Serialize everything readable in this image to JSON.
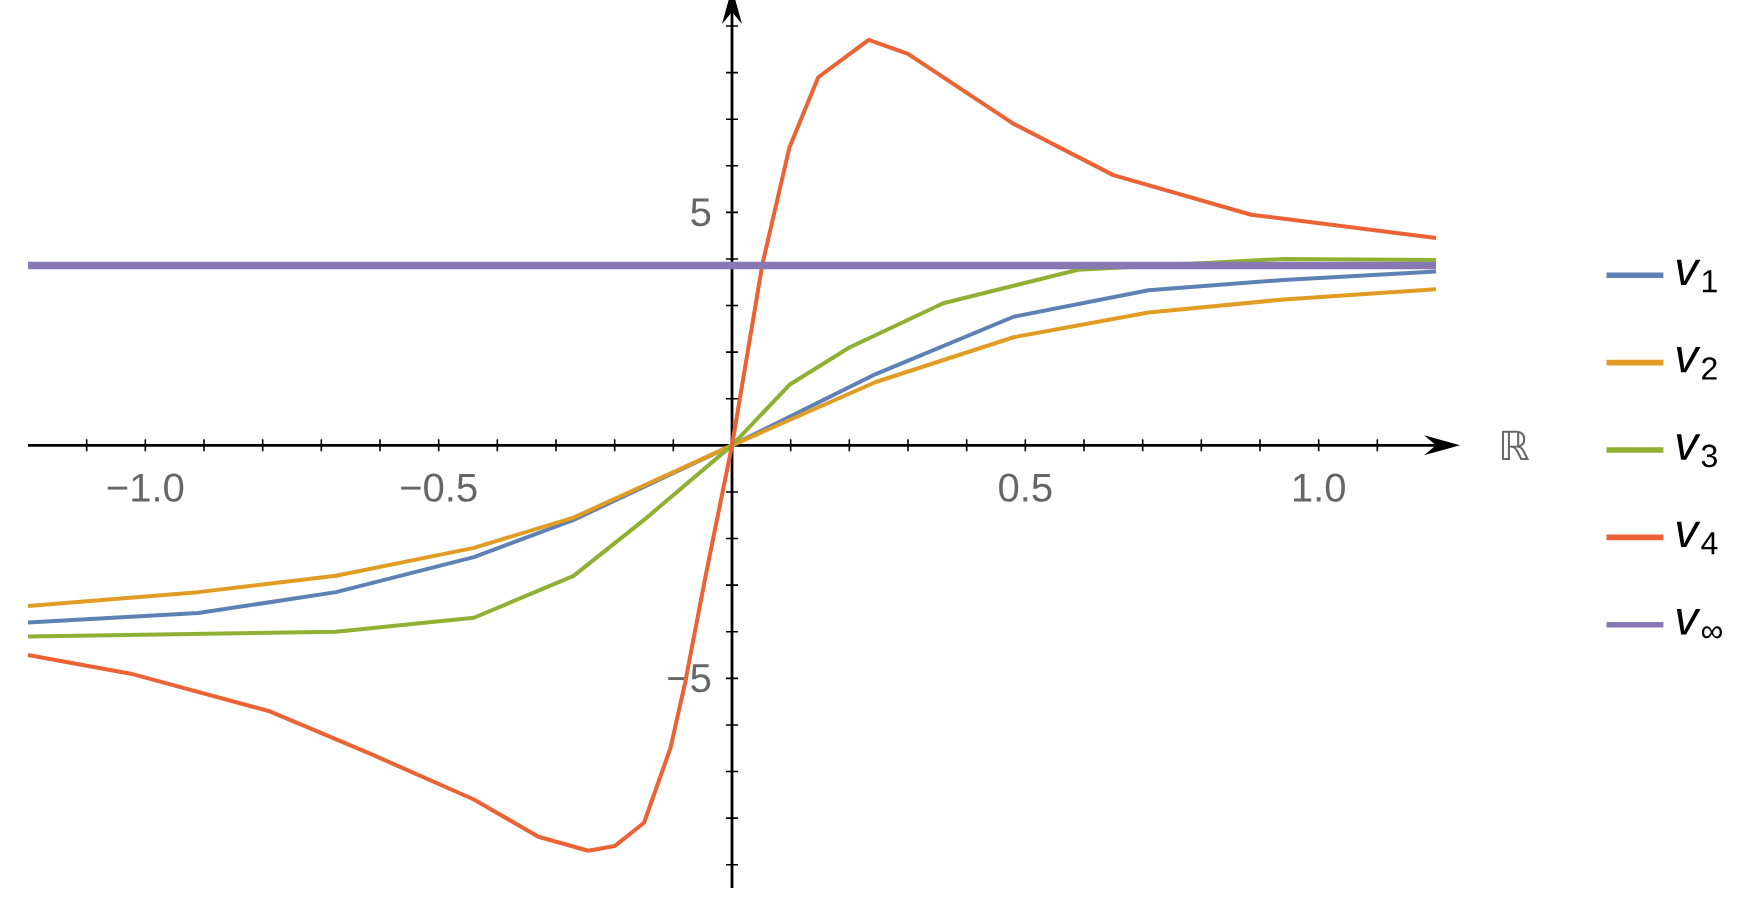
{
  "chart_data": {
    "type": "line",
    "xlabel": "ℝ",
    "xlim": [
      -1.2,
      1.2
    ],
    "ylim": [
      -9.5,
      9.3
    ],
    "xticks": [
      {
        "value": -1.1,
        "label": null
      },
      {
        "value": -1.0,
        "label": "−1.0"
      },
      {
        "value": -0.9,
        "label": null
      },
      {
        "value": -0.8,
        "label": null
      },
      {
        "value": -0.7,
        "label": null
      },
      {
        "value": -0.6,
        "label": null
      },
      {
        "value": -0.5,
        "label": "−0.5"
      },
      {
        "value": -0.4,
        "label": null
      },
      {
        "value": -0.3,
        "label": null
      },
      {
        "value": -0.2,
        "label": null
      },
      {
        "value": -0.1,
        "label": null
      },
      {
        "value": 0.1,
        "label": null
      },
      {
        "value": 0.2,
        "label": null
      },
      {
        "value": 0.3,
        "label": null
      },
      {
        "value": 0.4,
        "label": null
      },
      0.5,
      {
        "value": 0.6,
        "label": null
      },
      {
        "value": 0.7,
        "label": null
      },
      {
        "value": 0.8,
        "label": null
      },
      {
        "value": 0.9,
        "label": null
      },
      {
        "value": 1.0,
        "label": "1.0"
      },
      {
        "value": 1.1,
        "label": null
      }
    ],
    "yticks": [
      {
        "value": -9,
        "label": null
      },
      {
        "value": -8,
        "label": null
      },
      {
        "value": -7,
        "label": null
      },
      {
        "value": -6,
        "label": null
      },
      {
        "value": -5,
        "label": "−5"
      },
      {
        "value": -4,
        "label": null
      },
      {
        "value": -3,
        "label": null
      },
      {
        "value": -2,
        "label": null
      },
      {
        "value": -1,
        "label": null
      },
      {
        "value": 1,
        "label": null
      },
      {
        "value": 2,
        "label": null
      },
      {
        "value": 3,
        "label": null
      },
      {
        "value": 4,
        "label": null
      },
      5,
      {
        "value": 6,
        "label": null
      },
      {
        "value": 7,
        "label": null
      },
      {
        "value": 8,
        "label": null
      },
      {
        "value": 9,
        "label": null
      }
    ],
    "grid": false,
    "legend": "right",
    "marker": "none",
    "line_style": "solid",
    "series": [
      {
        "name": "*v*$_{1}$",
        "color": "#5e81b5",
        "x": [
          -1.2,
          -0.91,
          -0.675,
          -0.44,
          -0.27,
          0,
          0.245,
          0.48,
          0.71,
          0.94,
          1.2
        ],
        "values": [
          -3.8,
          -3.6,
          -3.15,
          -2.4,
          -1.6,
          0,
          1.53,
          2.76,
          3.33,
          3.55,
          3.73
        ]
      },
      {
        "name": "*v*$_{2}$",
        "color": "#e19c24",
        "x": [
          -1.2,
          -0.91,
          -0.675,
          -0.44,
          -0.27,
          0,
          0.245,
          0.48,
          0.71,
          0.94,
          1.2
        ],
        "values": [
          -3.45,
          -3.15,
          -2.8,
          -2.2,
          -1.55,
          0,
          1.36,
          2.32,
          2.85,
          3.13,
          3.35
        ]
      },
      {
        "name": "*v*$_{3}$",
        "color": "#8fb032",
        "x": [
          -1.2,
          -0.675,
          -0.44,
          -0.27,
          -0.15,
          0,
          0.098,
          0.2,
          0.36,
          0.59,
          0.94,
          1.2
        ],
        "values": [
          -4.1,
          -4.0,
          -3.7,
          -2.8,
          -1.6,
          0,
          1.3,
          2.1,
          3.05,
          3.77,
          4.0,
          3.98
        ]
      },
      {
        "name": "*v*$_{4}$",
        "color": "#eb6235",
        "x": [
          -1.2,
          -1.025,
          -0.79,
          -0.62,
          -0.44,
          -0.33,
          -0.245,
          -0.2,
          -0.15,
          -0.105,
          -0.08,
          -0.045,
          0,
          0.052,
          0.098,
          0.147,
          0.233,
          0.3,
          0.48,
          0.65,
          0.885,
          1.2
        ],
        "values": [
          -4.5,
          -4.9,
          -5.7,
          -6.6,
          -7.6,
          -8.4,
          -8.7,
          -8.6,
          -8.1,
          -6.5,
          -5.1,
          -2.8,
          0,
          3.9,
          6.4,
          7.9,
          8.7,
          8.4,
          6.9,
          5.8,
          4.95,
          4.45
        ]
      },
      {
        "name": "*v*$_{∞}$",
        "color": "#8778b3",
        "x": [
          -1.2,
          1.2
        ],
        "values": [
          3.86,
          3.86
        ]
      }
    ]
  }
}
